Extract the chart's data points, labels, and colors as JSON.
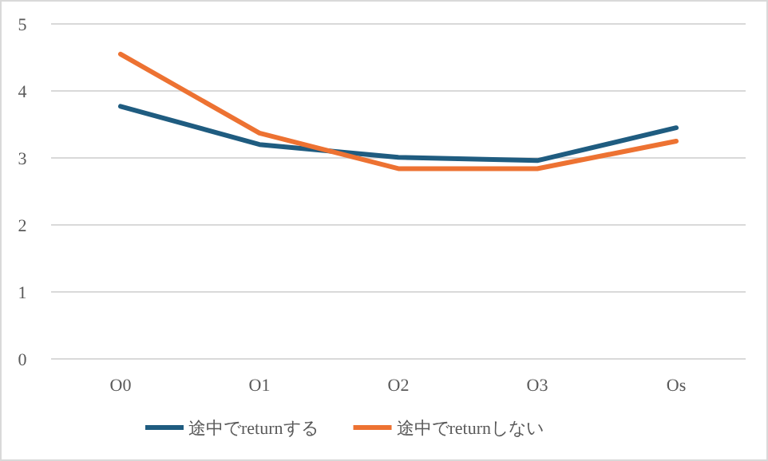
{
  "chart_data": {
    "type": "line",
    "categories": [
      "O0",
      "O1",
      "O2",
      "O3",
      "Os"
    ],
    "series": [
      {
        "name": "途中でreturnする",
        "color": "#1f5c80",
        "values": [
          3.77,
          3.2,
          3.01,
          2.96,
          3.45
        ]
      },
      {
        "name": "途中でreturnしない",
        "color": "#ed7232",
        "values": [
          4.55,
          3.37,
          2.84,
          2.84,
          3.25
        ]
      }
    ],
    "ylim": [
      0,
      5
    ],
    "yticks": [
      0,
      1,
      2,
      3,
      4,
      5
    ],
    "grid": "y",
    "legend": "bottom",
    "marker": "none",
    "line_style": "solid"
  }
}
